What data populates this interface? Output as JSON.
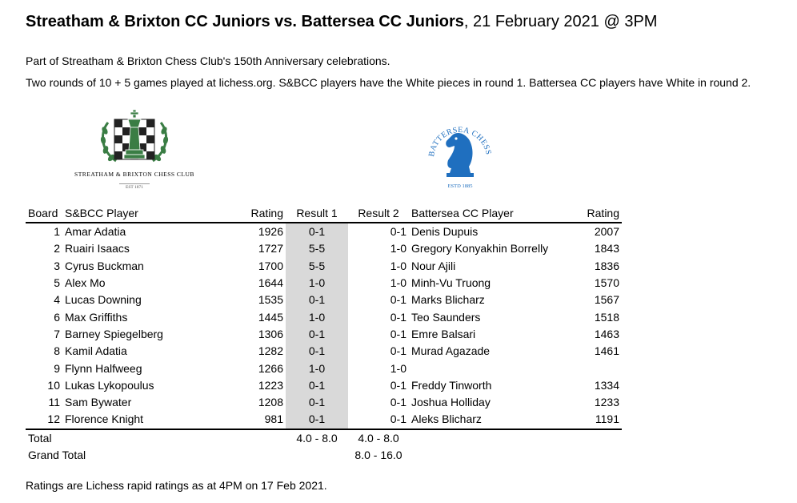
{
  "header": {
    "title_bold": "Streatham & Brixton CC Juniors vs. Battersea CC Juniors",
    "title_rest": ", 21 February 2021 @ 3PM"
  },
  "intro": {
    "line1": "Part of Streatham & Brixton Chess Club's 150th Anniversary celebrations.",
    "line2": "Two rounds of 10 + 5 games played at lichess.org. S&BCC players have the White pieces in round 1. Battersea CC players have White in round 2."
  },
  "logos": {
    "sbcc": {
      "name": "STREATHAM & BRIXTON CHESS CLUB",
      "est": "EST 1871",
      "color": "#3a7d44"
    },
    "bcc": {
      "top_text": "BATTERSEA CHESS CLUB",
      "est": "ESTD 1885",
      "color": "#1f6fbf"
    }
  },
  "table": {
    "headers": {
      "board": "Board",
      "player": "S&BCC Player",
      "rating": "Rating",
      "result1": "Result 1",
      "result2": "Result 2",
      "bplayer": "Battersea CC Player",
      "brating": "Rating"
    },
    "rows": [
      {
        "board": "1",
        "player": "Amar Adatia",
        "rating": "1926",
        "r1": "0-1",
        "r2": "0-1",
        "bplayer": "Denis Dupuis",
        "brating": "2007"
      },
      {
        "board": "2",
        "player": "Ruairi Isaacs",
        "rating": "1727",
        "r1": "5-5",
        "r2": "1-0",
        "bplayer": "Gregory Konyakhin Borrelly",
        "brating": "1843"
      },
      {
        "board": "3",
        "player": "Cyrus Buckman",
        "rating": "1700",
        "r1": "5-5",
        "r2": "1-0",
        "bplayer": "Nour Ajili",
        "brating": "1836"
      },
      {
        "board": "5",
        "player": "Alex Mo",
        "rating": "1644",
        "r1": "1-0",
        "r2": "1-0",
        "bplayer": "Minh-Vu Truong",
        "brating": "1570"
      },
      {
        "board": "4",
        "player": "Lucas Downing",
        "rating": "1535",
        "r1": "0-1",
        "r2": "0-1",
        "bplayer": "Marks Blicharz",
        "brating": "1567"
      },
      {
        "board": "6",
        "player": "Max Griffiths",
        "rating": "1445",
        "r1": "1-0",
        "r2": "0-1",
        "bplayer": "Teo Saunders",
        "brating": "1518"
      },
      {
        "board": "7",
        "player": "Barney Spiegelberg",
        "rating": "1306",
        "r1": "0-1",
        "r2": "0-1",
        "bplayer": "Emre Balsari",
        "brating": "1463"
      },
      {
        "board": "8",
        "player": "Kamil Adatia",
        "rating": "1282",
        "r1": "0-1",
        "r2": "0-1",
        "bplayer": "Murad Agazade",
        "brating": "1461"
      },
      {
        "board": "9",
        "player": "Flynn Halfweeg",
        "rating": "1266",
        "r1": "1-0",
        "r2": "1-0",
        "bplayer": "",
        "brating": ""
      },
      {
        "board": "10",
        "player": "Lukas Lykopoulus",
        "rating": "1223",
        "r1": "0-1",
        "r2": "0-1",
        "bplayer": "Freddy Tinworth",
        "brating": "1334"
      },
      {
        "board": "11",
        "player": "Sam Bywater",
        "rating": "1208",
        "r1": "0-1",
        "r2": "0-1",
        "bplayer": "Joshua Holliday",
        "brating": "1233"
      },
      {
        "board": "12",
        "player": "Florence Knight",
        "rating": "981",
        "r1": "0-1",
        "r2": "0-1",
        "bplayer": "Aleks Blicharz",
        "brating": "1191"
      }
    ],
    "total": {
      "label": "Total",
      "r1": "4.0 - 8.0",
      "r2": "4.0 - 8.0"
    },
    "grand_total": {
      "label": "Grand Total",
      "value": "8.0 - 16.0"
    }
  },
  "footnote": "Ratings are Lichess rapid ratings as at 4PM on 17 Feb 2021."
}
